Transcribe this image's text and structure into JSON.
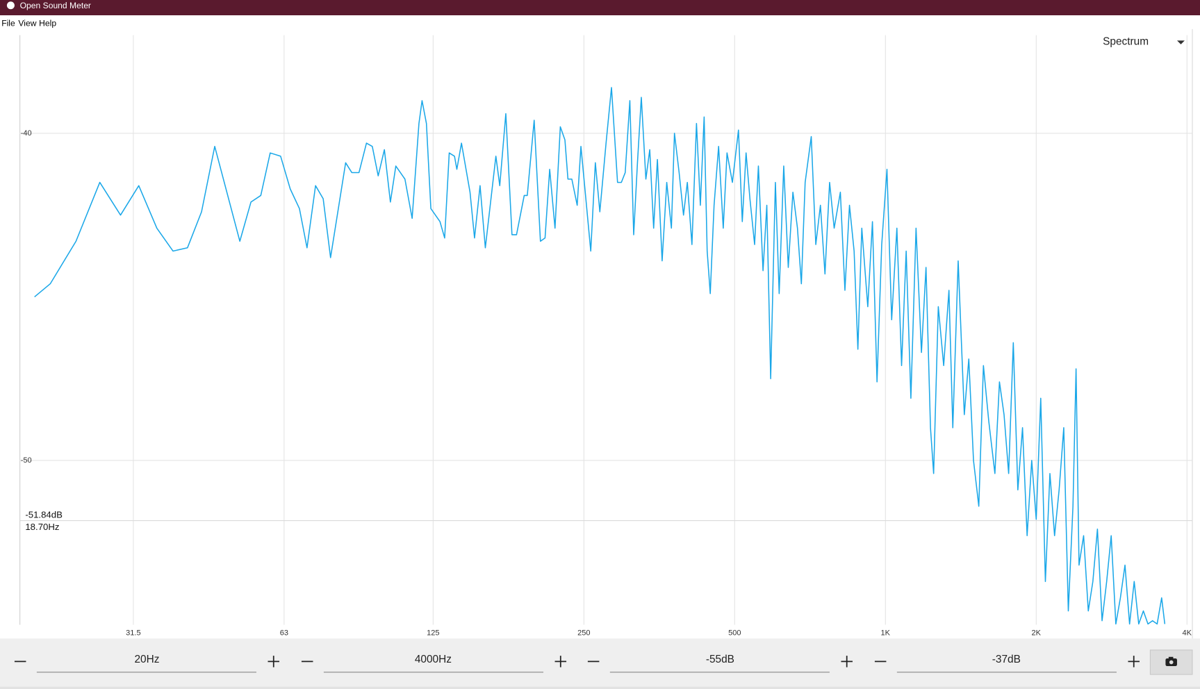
{
  "window": {
    "title": "Open Sound Meter"
  },
  "menu": [
    "File",
    "View",
    "Help"
  ],
  "view_selector": "Spectrum",
  "controls": {
    "x_min": "20Hz",
    "x_max": "4000Hz",
    "y_min": "-55dB",
    "y_max": "-37dB"
  },
  "chart_data": {
    "type": "line",
    "xscale": "log",
    "grid": true,
    "color": "#1aa7e8",
    "xlim": [
      18.7,
      4000
    ],
    "ylim": [
      -55,
      -37
    ],
    "xticks": [
      31.5,
      63,
      125,
      250,
      500,
      {
        "value": 1000,
        "label": "1K"
      },
      {
        "value": 2000,
        "label": "2K"
      },
      {
        "value": 4000,
        "label": "4K"
      }
    ],
    "yticks": [
      -40,
      -50
    ],
    "cursor": {
      "y": -51.84,
      "x": 18.7,
      "y_label": "-51.84dB",
      "x_label": "18.70Hz"
    },
    "x": [
      20.0,
      21.5,
      24.2,
      27.0,
      29.7,
      32.3,
      35.1,
      37.8,
      40.4,
      43.1,
      45.8,
      51.4,
      54.1,
      56.6,
      59.1,
      62.0,
      64.8,
      67.6,
      70.0,
      72.8,
      75.4,
      78.0,
      83.6,
      86.0,
      88.9,
      92.0,
      94.5,
      97.1,
      99.9,
      102.7,
      105.3,
      109.8,
      113.5,
      117.1,
      118.8,
      121.2,
      123.7,
      129.0,
      131.8,
      134.6,
      137.9,
      139.4,
      142.4,
      148.1,
      151.2,
      155.1,
      158.9,
      166.8,
      169.8,
      174.6,
      179.6,
      183.4,
      190.0,
      192.7,
      198.9,
      204.7,
      209.1,
      213.6,
      218.9,
      224.3,
      229.1,
      232.3,
      236.5,
      242.4,
      246.6,
      252.6,
      258.0,
      263.5,
      269.0,
      276.8,
      283.8,
      291.8,
      297.0,
      302.3,
      308.8,
      314.3,
      319.8,
      325.5,
      332.4,
      338.4,
      344.5,
      350.5,
      358.2,
      365.9,
      373.8,
      379.1,
      387.3,
      395.2,
      402.2,
      410.8,
      419.5,
      427.0,
      434.5,
      440.6,
      446.9,
      454.8,
      464.4,
      474.4,
      482.7,
      494.8,
      508.8,
      517.8,
      526.9,
      536.3,
      548.0,
      557.6,
      569.6,
      579.6,
      590.0,
      602.9,
      613.5,
      626.5,
      639.7,
      653.5,
      667.3,
      679.4,
      691.3,
      711.0,
      726.0,
      741.6,
      757.3,
      773.6,
      790.0,
      812.8,
      830.0,
      847.6,
      865.8,
      881.0,
      897.0,
      922.0,
      942.0,
      962.0,
      983.0,
      1007,
      1029,
      1054,
      1077,
      1100,
      1124,
      1151,
      1180,
      1205,
      1230,
      1248,
      1275,
      1307,
      1339,
      1363,
      1397,
      1437,
      1467,
      1499,
      1536,
      1569,
      1608,
      1654,
      1689,
      1725,
      1762,
      1800,
      1838,
      1878,
      1918,
      1959,
      2000,
      2042,
      2086,
      2130,
      2176,
      2222,
      2270,
      2318,
      2368,
      2402,
      2435,
      2487,
      2541,
      2595,
      2650,
      2707,
      2765,
      2823,
      2884,
      2945,
      3008,
      3072,
      3138,
      3204,
      3273,
      3343,
      3414,
      3487,
      3560,
      3612
    ],
    "values": [
      -45.0,
      -44.6,
      -43.3,
      -41.5,
      -42.5,
      -41.6,
      -42.9,
      -43.6,
      -43.5,
      -42.4,
      -40.4,
      -43.3,
      -42.1,
      -41.9,
      -40.6,
      -40.7,
      -41.7,
      -42.3,
      -43.5,
      -41.6,
      -42.0,
      -43.8,
      -40.9,
      -41.2,
      -41.2,
      -40.3,
      -40.4,
      -41.3,
      -40.5,
      -42.1,
      -41.0,
      -41.4,
      -42.6,
      -39.7,
      -39.0,
      -39.7,
      -42.3,
      -42.7,
      -43.2,
      -40.6,
      -40.7,
      -41.1,
      -40.3,
      -41.8,
      -43.2,
      -41.6,
      -43.5,
      -40.7,
      -41.6,
      -39.4,
      -43.1,
      -43.1,
      -41.9,
      -41.9,
      -39.6,
      -43.3,
      -43.2,
      -41.1,
      -42.9,
      -39.8,
      -40.2,
      -41.4,
      -41.4,
      -42.2,
      -40.4,
      -42.1,
      -43.6,
      -40.9,
      -42.4,
      -40.3,
      -38.6,
      -41.5,
      -41.5,
      -41.2,
      -39.0,
      -43.1,
      -40.9,
      -38.9,
      -41.4,
      -40.5,
      -42.9,
      -40.8,
      -43.9,
      -41.5,
      -42.9,
      -40.0,
      -41.2,
      -42.5,
      -41.5,
      -43.4,
      -39.7,
      -42.2,
      -39.5,
      -43.6,
      -44.9,
      -42.2,
      -40.4,
      -42.9,
      -40.6,
      -41.5,
      -39.9,
      -42.7,
      -40.6,
      -42.0,
      -43.4,
      -41.0,
      -44.2,
      -42.2,
      -47.5,
      -41.5,
      -44.9,
      -41.0,
      -44.1,
      -41.8,
      -42.9,
      -44.6,
      -41.5,
      -40.1,
      -43.4,
      -42.2,
      -44.3,
      -41.5,
      -42.9,
      -41.8,
      -44.8,
      -42.2,
      -43.6,
      -46.6,
      -42.9,
      -45.3,
      -42.7,
      -47.6,
      -43.4,
      -41.1,
      -45.7,
      -42.9,
      -47.1,
      -43.6,
      -48.1,
      -42.9,
      -46.7,
      -44.1,
      -49.0,
      -50.4,
      -45.3,
      -47.1,
      -44.8,
      -49.0,
      -43.9,
      -48.6,
      -46.9,
      -50.0,
      -51.4,
      -47.1,
      -48.8,
      -50.4,
      -47.6,
      -48.6,
      -50.4,
      -46.4,
      -50.9,
      -49.0,
      -52.3,
      -50.0,
      -51.8,
      -48.1,
      -53.7,
      -50.4,
      -52.3,
      -50.9,
      -49.0,
      -54.6,
      -51.4,
      -47.2,
      -53.2,
      -52.3,
      -54.6,
      -53.7,
      -52.1,
      -54.9,
      -53.7,
      -52.3,
      -55,
      -54.2,
      -53.2,
      -55,
      -53.7,
      -55,
      -54.6,
      -55,
      -54.9,
      -55,
      -54.2,
      -55
    ]
  }
}
